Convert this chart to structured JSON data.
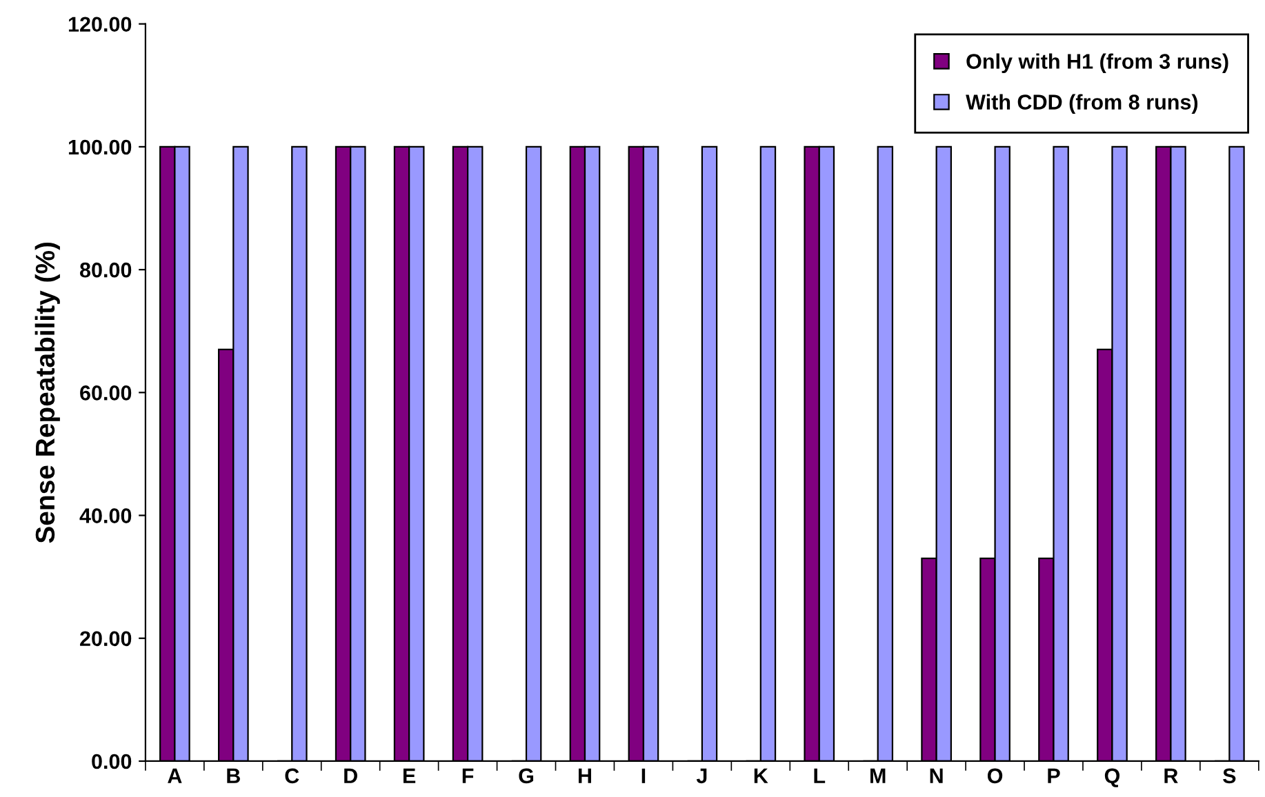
{
  "chart_data": {
    "type": "bar",
    "ylabel": "Sense Repeatability (%)",
    "categories": [
      "A",
      "B",
      "C",
      "D",
      "E",
      "F",
      "G",
      "H",
      "I",
      "J",
      "K",
      "L",
      "M",
      "N",
      "O",
      "P",
      "Q",
      "R",
      "S"
    ],
    "series": [
      {
        "name": "Only with H1 (from 3 runs)",
        "color": "#800080",
        "values": [
          100,
          67,
          0,
          100,
          100,
          100,
          0,
          100,
          100,
          0,
          0,
          100,
          0,
          33,
          33,
          33,
          67,
          100,
          0
        ]
      },
      {
        "name": "With CDD (from 8 runs)",
        "color": "#9999ff",
        "values": [
          100,
          100,
          100,
          100,
          100,
          100,
          100,
          100,
          100,
          100,
          100,
          100,
          100,
          100,
          100,
          100,
          100,
          100,
          100
        ]
      }
    ],
    "ylim": [
      0,
      120
    ],
    "yticks": [
      {
        "value": 0,
        "label": "0.00"
      },
      {
        "value": 20,
        "label": "20.00"
      },
      {
        "value": 40,
        "label": "40.00"
      },
      {
        "value": 60,
        "label": "60.00"
      },
      {
        "value": 80,
        "label": "80.00"
      },
      {
        "value": 100,
        "label": "100.00"
      },
      {
        "value": 120,
        "label": "120.00"
      }
    ],
    "grid": false,
    "legend": "top right"
  }
}
